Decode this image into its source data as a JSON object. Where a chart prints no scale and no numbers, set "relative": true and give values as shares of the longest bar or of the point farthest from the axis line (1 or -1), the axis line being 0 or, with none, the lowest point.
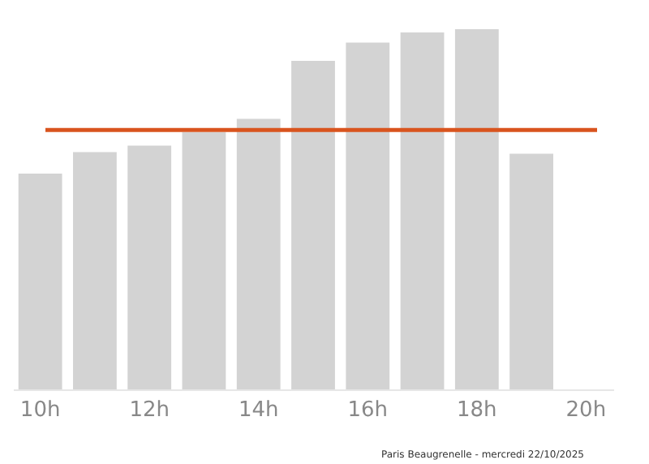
{
  "chart_data": {
    "type": "bar",
    "relative": true,
    "categories": [
      "10h",
      null,
      "12h",
      null,
      "14h",
      null,
      "16h",
      null,
      "18h",
      null,
      "20h"
    ],
    "values": [
      0.599,
      0.659,
      0.677,
      0.714,
      0.751,
      0.912,
      0.963,
      0.991,
      1,
      0.654,
      null
    ],
    "color": "#d3d3d3",
    "ref_lines": [
      {
        "axis": "y",
        "value": 0.72,
        "color": "#d9541e"
      }
    ],
    "annotations": [
      "Paris Beaugrenelle - mercredi 22/10/2025"
    ],
    "grid": false
  }
}
